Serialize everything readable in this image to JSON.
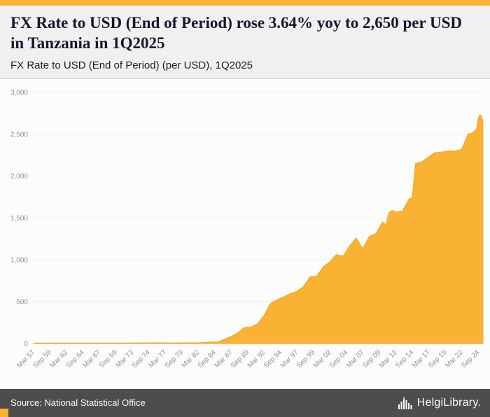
{
  "accent_color": "#F9B233",
  "header": {
    "title": "FX Rate to USD (End of Period) rose 3.64% yoy to 2,650 per USD in Tanzania in 1Q2025",
    "subtitle": "FX Rate to USD (End of Period) (per USD), 1Q2025"
  },
  "footer": {
    "source": "Source: National Statistical Office",
    "logo_text": "HelgiLibrary.",
    "background": "#4d4d4d"
  },
  "chart_data": {
    "type": "area",
    "title": "FX Rate to USD (End of Period) (per USD), 1Q2025",
    "series_name": "FX Rate to USD (End of Period), Tanzania (per USD)",
    "latest_period": "1Q2025",
    "latest_value": 2650,
    "yoy_change_pct": 3.64,
    "fill_color": "#F9B233",
    "line_color": "#EFA428",
    "grid": true,
    "legend": "none",
    "x_range": [
      1957.25,
      2025.25
    ],
    "ylim": [
      0,
      3000
    ],
    "y_tick_values": [
      0,
      500,
      1000,
      1500,
      2000,
      2500,
      3000
    ],
    "y_tick_labels": [
      "0",
      "500",
      "1,000",
      "1,500",
      "2,000",
      "2,500",
      "3,000"
    ],
    "x_tick_years": [
      1957.25,
      1959.75,
      1962.25,
      1964.75,
      1967.25,
      1969.75,
      1972.25,
      1974.75,
      1977.25,
      1979.75,
      1982.25,
      1984.75,
      1987.25,
      1989.75,
      1992.25,
      1994.75,
      1997.25,
      1999.75,
      2002.25,
      2004.75,
      2007.25,
      2009.75,
      2012.25,
      2014.75,
      2017.25,
      2019.75,
      2022.25,
      2024.75
    ],
    "x_tick_labels": [
      "Mar 57",
      "Sep 59",
      "Mar 62",
      "Sep 64",
      "Mar 67",
      "Sep 69",
      "Mar 72",
      "Sep 74",
      "Mar 77",
      "Sep 79",
      "Mar 82",
      "Sep 84",
      "Mar 87",
      "Sep 89",
      "Mar 92",
      "Sep 94",
      "Mar 97",
      "Sep 99",
      "Mar 02",
      "Sep 04",
      "Mar 07",
      "Sep 09",
      "Mar 12",
      "Sep 14",
      "Mar 17",
      "Sep 19",
      "Mar 22",
      "Sep 24"
    ],
    "x": [
      1957.25,
      1960,
      1965,
      1970,
      1975,
      1978,
      1980,
      1982,
      1983,
      1984,
      1985,
      1986,
      1987,
      1988,
      1989,
      1990,
      1991,
      1992,
      1993,
      1994,
      1995,
      1996,
      1997,
      1998,
      1999,
      2000,
      2001,
      2002,
      2003,
      2004,
      2005,
      2006,
      2007,
      2008,
      2009,
      2010,
      2010.5,
      2011,
      2011.5,
      2012,
      2013,
      2014,
      2014.5,
      2015,
      2016,
      2017,
      2018,
      2019,
      2020,
      2021,
      2022,
      2023,
      2023.5,
      2024.25,
      2024.5,
      2024.75,
      2025,
      2025.25
    ],
    "values": [
      7,
      7.1,
      7.1,
      7.1,
      8.3,
      7.4,
      8.2,
      9.3,
      12.5,
      18.1,
      17.5,
      51.7,
      83.7,
      125,
      192.3,
      196.6,
      233.9,
      335,
      479.9,
      523.4,
      558,
      595.6,
      624.6,
      681,
      797.3,
      803.3,
      916.3,
      976.3,
      1063.6,
      1043,
      1165.5,
      1261.6,
      1132.1,
      1280.3,
      1313.3,
      1453.5,
      1420,
      1566.7,
      1590,
      1571.6,
      1578.6,
      1725,
      1740,
      2148.5,
      2172.6,
      2230.1,
      2281.2,
      2287.9,
      2298.5,
      2297.8,
      2321.8,
      2505,
      2510,
      2557,
      2680,
      2730,
      2720,
      2650
    ]
  }
}
